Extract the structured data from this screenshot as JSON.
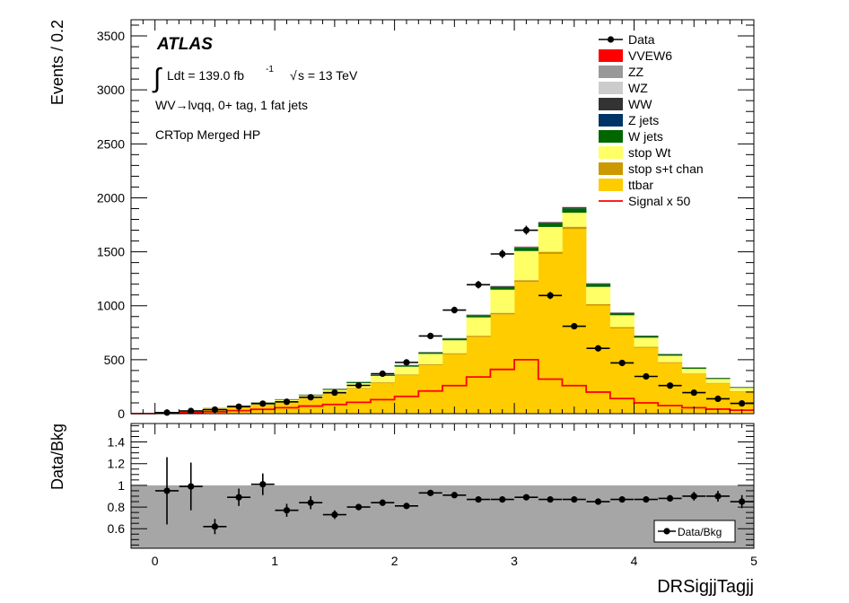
{
  "experiment_label": "ATLAS",
  "lumi_prefix": "Ldt = 139.0 fb",
  "lumi_exp": "-1",
  "sqrt_s": "s = 13 TeV",
  "channel": "WV→lνqq, 0+ tag, 1 fat jets",
  "region": "CRTop Merged HP",
  "colors": {
    "VVEW6": "#ff0000",
    "ZZ": "#999999",
    "WZ": "#cccccc",
    "WW": "#333333",
    "Z jets": "#003366",
    "W jets": "#006600",
    "stop Wt": "#ffff66",
    "stop s+t chan": "#cc9900",
    "ttbar": "#ffcc00",
    "Signal x 50": "#ff0000",
    "ratio_band": "#a6a6a6"
  },
  "chart_data": [
    {
      "type": "bar",
      "stacked": true,
      "xlabel": "",
      "ylabel": "Events / 0.2",
      "xlim": [
        -0.2,
        5.0
      ],
      "ylim": [
        0,
        3650
      ],
      "xticks": [
        "0",
        "1",
        "2",
        "3",
        "4",
        "5"
      ],
      "yticks": [
        "0",
        "500",
        "1000",
        "1500",
        "2000",
        "2500",
        "3000",
        "3500"
      ],
      "bin_edges": [
        -0.2,
        0.0,
        0.2,
        0.4,
        0.6,
        0.8,
        1.0,
        1.2,
        1.4,
        1.6,
        1.8,
        2.0,
        2.2,
        2.4,
        2.6,
        2.8,
        3.0,
        3.2,
        3.4,
        3.6,
        3.8,
        4.0,
        4.2,
        4.4,
        4.6,
        4.8,
        5.0
      ],
      "series": [
        {
          "name": "ttbar",
          "values": [
            2,
            12,
            25,
            45,
            60,
            82,
            105,
            140,
            182,
            233,
            285,
            355,
            450,
            550,
            710,
            920,
            1220,
            1480,
            1710,
            1000,
            790,
            610,
            470,
            365,
            280,
            205
          ]
        },
        {
          "name": "stop s+t chan",
          "values": [
            0,
            1,
            1,
            2,
            2,
            3,
            3,
            4,
            5,
            6,
            7,
            8,
            9,
            10,
            12,
            14,
            17,
            20,
            22,
            15,
            12,
            9,
            7,
            6,
            5,
            4
          ]
        },
        {
          "name": "stop Wt",
          "values": [
            0,
            2,
            4,
            6,
            10,
            14,
            20,
            26,
            34,
            44,
            58,
            72,
            95,
            120,
            170,
            215,
            270,
            230,
            130,
            160,
            110,
            85,
            60,
            45,
            36,
            30
          ]
        },
        {
          "name": "W jets",
          "values": [
            0,
            1,
            1,
            2,
            3,
            4,
            5,
            6,
            7,
            9,
            10,
            12,
            13,
            16,
            20,
            25,
            30,
            35,
            40,
            26,
            20,
            15,
            12,
            10,
            8,
            6
          ]
        },
        {
          "name": "Z jets",
          "values": [
            0,
            0,
            0,
            0,
            0,
            0,
            0,
            0,
            1,
            1,
            1,
            1,
            1,
            1,
            1,
            2,
            2,
            2,
            2,
            2,
            1,
            1,
            1,
            1,
            1,
            1
          ]
        },
        {
          "name": "WW",
          "values": [
            0,
            0,
            0,
            0,
            1,
            1,
            1,
            1,
            2,
            2,
            2,
            3,
            3,
            3,
            4,
            5,
            6,
            7,
            8,
            5,
            4,
            3,
            3,
            2,
            2,
            1
          ]
        },
        {
          "name": "WZ",
          "values": [
            0,
            0,
            0,
            0,
            0,
            0,
            1,
            1,
            1,
            1,
            1,
            1,
            1,
            2,
            2,
            2,
            3,
            3,
            3,
            2,
            2,
            1,
            1,
            1,
            1,
            1
          ]
        },
        {
          "name": "ZZ",
          "values": [
            0,
            0,
            0,
            0,
            0,
            0,
            0,
            0,
            0,
            0,
            0,
            0,
            0,
            0,
            1,
            1,
            1,
            1,
            1,
            1,
            1,
            0,
            0,
            0,
            0,
            0
          ]
        },
        {
          "name": "VVEW6",
          "values": [
            0,
            0,
            0,
            0,
            0,
            0,
            0,
            0,
            0,
            0,
            0,
            0,
            0,
            0,
            0,
            1,
            1,
            1,
            1,
            0,
            0,
            0,
            0,
            0,
            0,
            0
          ]
        }
      ],
      "signal": {
        "name": "Signal x 50",
        "values": [
          1,
          5,
          10,
          18,
          28,
          40,
          55,
          70,
          85,
          105,
          130,
          160,
          210,
          260,
          340,
          410,
          500,
          320,
          260,
          200,
          140,
          100,
          75,
          55,
          42,
          32
        ]
      },
      "data": {
        "name": "Data",
        "x": [
          0.1,
          0.3,
          0.5,
          0.7,
          0.9,
          1.1,
          1.3,
          1.5,
          1.7,
          1.9,
          2.1,
          2.3,
          2.5,
          2.7,
          2.9,
          3.1,
          3.3,
          3.5,
          3.7,
          3.9,
          4.1,
          4.3,
          4.5,
          4.7,
          4.9
        ],
        "y": [
          10,
          25,
          38,
          65,
          93,
          110,
          152,
          195,
          262,
          370,
          475,
          720,
          960,
          1195,
          1480,
          1700,
          1095,
          810,
          605,
          470,
          345,
          260,
          195,
          138,
          95
        ]
      },
      "legend": {
        "placement": "top-right",
        "entries": [
          "Data",
          "VVEW6",
          "ZZ",
          "WZ",
          "WW",
          "Z jets",
          "W jets",
          "stop Wt",
          "stop s+t chan",
          "ttbar",
          "Signal x 50"
        ]
      }
    },
    {
      "type": "scatter",
      "xlabel": "DRSigjjTagjj",
      "ylabel": "Data/Bkg",
      "xlim": [
        -0.2,
        5.0
      ],
      "ylim": [
        0.42,
        1.57
      ],
      "xticks": [
        "0",
        "1",
        "2",
        "3",
        "4",
        "5"
      ],
      "yticks": [
        "0.6",
        "0.8",
        "1",
        "1.2",
        "1.4"
      ],
      "band": [
        0.42,
        1.0
      ],
      "legend": {
        "placement": "bottom-right",
        "entries": [
          "Data/Bkg"
        ]
      },
      "x": [
        0.1,
        0.3,
        0.5,
        0.7,
        0.9,
        1.1,
        1.3,
        1.5,
        1.7,
        1.9,
        2.1,
        2.3,
        2.5,
        2.7,
        2.9,
        3.1,
        3.3,
        3.5,
        3.7,
        3.9,
        4.1,
        4.3,
        4.5,
        4.7,
        4.9
      ],
      "y": [
        0.95,
        0.99,
        0.62,
        0.89,
        1.01,
        0.77,
        0.84,
        0.73,
        0.8,
        0.84,
        0.81,
        0.93,
        0.91,
        0.87,
        0.87,
        0.89,
        0.87,
        0.87,
        0.85,
        0.87,
        0.87,
        0.88,
        0.9,
        0.9,
        0.85
      ],
      "err": [
        0.31,
        0.22,
        0.07,
        0.08,
        0.1,
        0.06,
        0.06,
        0.04,
        0.03,
        0.03,
        0.02,
        0.02,
        0.02,
        0.02,
        0.02,
        0.02,
        0.02,
        0.02,
        0.02,
        0.02,
        0.02,
        0.03,
        0.04,
        0.05,
        0.06
      ]
    }
  ]
}
